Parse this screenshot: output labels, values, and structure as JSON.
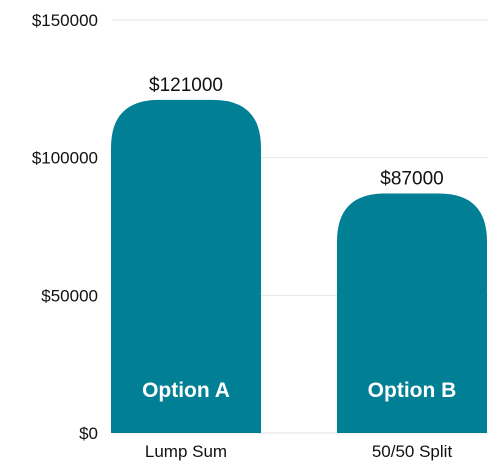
{
  "chart_data": {
    "type": "bar",
    "categories": [
      "Lump Sum",
      "50/50 Split"
    ],
    "bar_labels": [
      "Option A",
      "Option B"
    ],
    "values": [
      121000,
      87000
    ],
    "value_labels": [
      "$121000",
      "$87000"
    ],
    "y_ticks": [
      0,
      50000,
      100000,
      150000
    ],
    "y_tick_labels": [
      "$0",
      "$50000",
      "$100000",
      "$150000"
    ],
    "ylim": [
      0,
      150000
    ],
    "grid": true,
    "title": "",
    "xlabel": "",
    "ylabel": ""
  },
  "colors": {
    "bar": "#017f95"
  }
}
